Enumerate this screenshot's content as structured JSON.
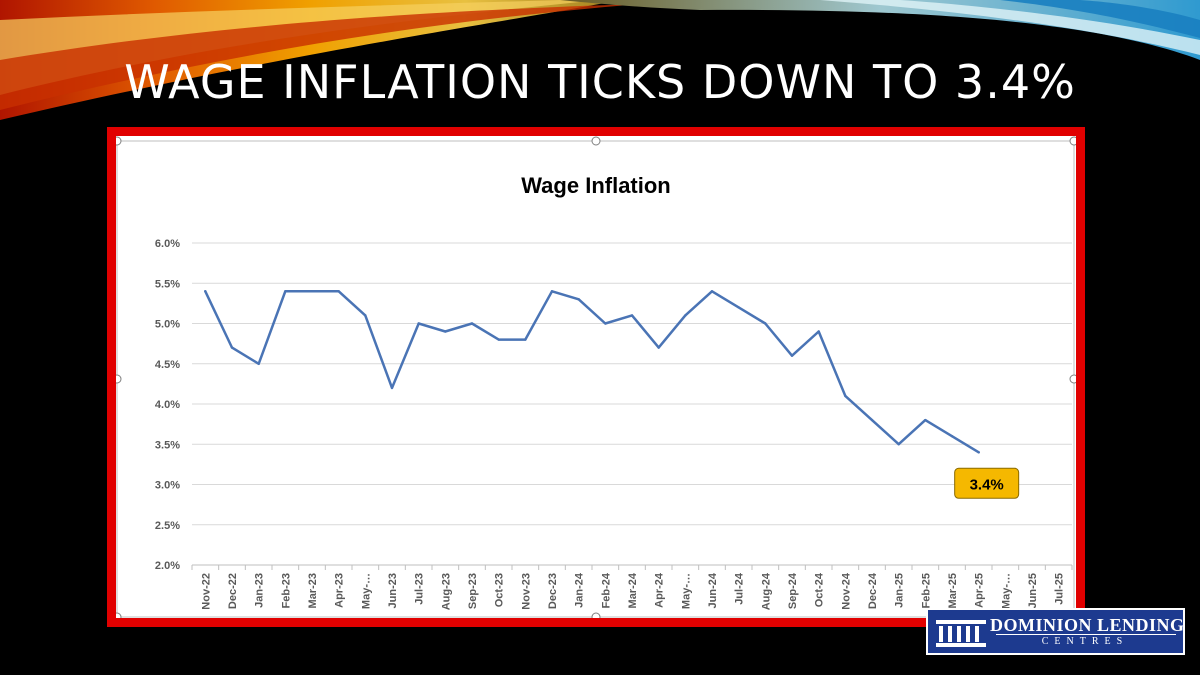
{
  "slide": {
    "title": "WAGE INFLATION TICKS DOWN TO 3.4%"
  },
  "colors": {
    "background": "#000000",
    "frame": "#e10000",
    "line": "#4a74b5",
    "callout_fill": "#f5b800",
    "logo_bg": "#1d3a8f"
  },
  "logo": {
    "name": "DOMINION LENDING",
    "sub": "CENTRES",
    "icon": "columns-icon"
  },
  "chart_data": {
    "type": "line",
    "title": "Wage Inflation",
    "xlabel": "",
    "ylabel": "",
    "ylim": [
      0.02,
      0.06
    ],
    "y_ticks": [
      "2.0%",
      "2.5%",
      "3.0%",
      "3.5%",
      "4.0%",
      "4.5%",
      "5.0%",
      "5.5%",
      "6.0%"
    ],
    "grid": true,
    "legend": "none",
    "categories": [
      "Nov-22",
      "Dec-22",
      "Jan-23",
      "Feb-23",
      "Mar-23",
      "Apr-23",
      "May-…",
      "Jun-23",
      "Jul-23",
      "Aug-23",
      "Sep-23",
      "Oct-23",
      "Nov-23",
      "Dec-23",
      "Jan-24",
      "Feb-24",
      "Mar-24",
      "Apr-24",
      "May-…",
      "Jun-24",
      "Jul-24",
      "Aug-24",
      "Sep-24",
      "Oct-24",
      "Nov-24",
      "Dec-24",
      "Jan-25",
      "Feb-25",
      "Mar-25",
      "Apr-25",
      "May-…",
      "Jun-25",
      "Jul-25"
    ],
    "series": [
      {
        "values": [
          0.054,
          0.047,
          0.045,
          0.054,
          0.054,
          0.054,
          0.051,
          0.042,
          0.05,
          0.049,
          0.05,
          0.048,
          0.048,
          0.054,
          0.053,
          0.05,
          0.051,
          0.047,
          0.051,
          0.054,
          0.052,
          0.05,
          0.046,
          0.049,
          0.041,
          0.038,
          0.035,
          0.038,
          0.036,
          0.034,
          null,
          null,
          null
        ]
      }
    ],
    "annotation": {
      "category": "Apr-25",
      "value": 0.034,
      "label": "3.4%"
    }
  }
}
